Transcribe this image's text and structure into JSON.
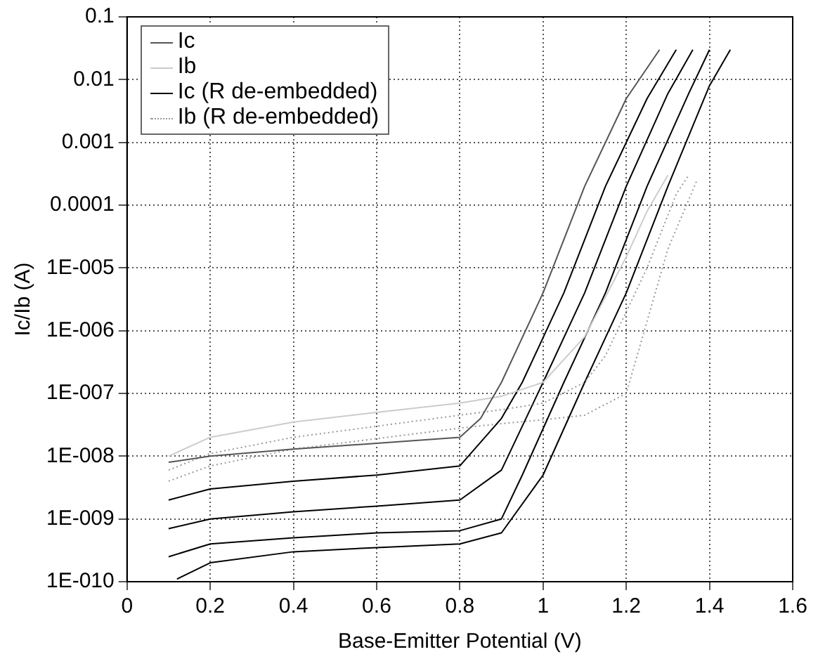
{
  "chart_data": {
    "type": "line",
    "xlabel": "Base-Emitter Potential (V)",
    "ylabel": "Ic/Ib (A)",
    "log": "y",
    "grid": true,
    "legend": "top left",
    "marker": "none",
    "xlim": [
      0,
      1.6
    ],
    "xticks": [
      0,
      0.2,
      0.4,
      0.6,
      0.8,
      1,
      1.2,
      1.4,
      1.6
    ],
    "ylim": [
      1e-10,
      0.1
    ],
    "yticks": [
      {
        "value": 1e-10,
        "label": "1E-010"
      },
      {
        "value": 1e-09,
        "label": "1E-009"
      },
      {
        "value": 1e-08,
        "label": "1E-008"
      },
      {
        "value": 1e-07,
        "label": "1E-007"
      },
      {
        "value": 1e-06,
        "label": "1E-006"
      },
      {
        "value": 1e-05,
        "label": "1E-005"
      },
      {
        "value": 0.0001,
        "label": "0.0001"
      },
      {
        "value": 0.001,
        "label": "0.001"
      },
      {
        "value": 0.01,
        "label": "0.01"
      },
      {
        "value": 0.1,
        "label": "0.1"
      }
    ],
    "series": [
      {
        "name": "Ic",
        "color": "#555555",
        "line_style": "solid",
        "x": [
          0.1,
          0.2,
          0.4,
          0.6,
          0.8,
          0.85,
          0.9,
          1.0,
          1.1,
          1.2,
          1.28
        ],
        "values": [
          8e-09,
          1e-08,
          1.3e-08,
          1.6e-08,
          2e-08,
          4e-08,
          1.5e-07,
          4e-06,
          0.0002,
          0.005,
          0.03
        ]
      },
      {
        "name": "Ib",
        "color": "#cccccc",
        "line_style": "solid",
        "x": [
          0.1,
          0.2,
          0.4,
          0.6,
          0.8,
          0.9,
          1.0,
          1.1,
          1.2,
          1.25,
          1.3
        ],
        "values": [
          1e-08,
          2e-08,
          3.5e-08,
          5e-08,
          7e-08,
          9e-08,
          1.5e-07,
          8e-07,
          1.5e-05,
          8e-05,
          0.0003
        ]
      },
      {
        "name": "Ic (R de-embedded)",
        "color": "#000000",
        "line_style": "solid",
        "x": [
          0.1,
          0.2,
          0.4,
          0.6,
          0.8,
          0.9,
          0.95,
          1.05,
          1.15,
          1.25,
          1.32
        ],
        "values": [
          2e-09,
          3e-09,
          4e-09,
          5e-09,
          7e-09,
          4e-08,
          1.5e-07,
          4e-06,
          0.0002,
          0.005,
          0.03
        ]
      },
      {
        "name": "Ib (R de-embedded)",
        "color": "#999999",
        "line_style": "dotted",
        "x": [
          0.1,
          0.2,
          0.4,
          0.6,
          0.8,
          0.9,
          1.0,
          1.1,
          1.15,
          1.25,
          1.32,
          1.35
        ],
        "values": [
          6e-09,
          1.1e-08,
          2e-08,
          3e-08,
          4.5e-08,
          5.5e-08,
          7e-08,
          1.5e-07,
          4e-07,
          1e-05,
          0.00015,
          0.0003
        ]
      },
      {
        "color": "#000000",
        "line_style": "solid",
        "x": [
          0.1,
          0.2,
          0.4,
          0.6,
          0.8,
          0.9,
          1.0,
          1.1,
          1.2,
          1.3,
          1.36
        ],
        "values": [
          7e-10,
          1e-09,
          1.3e-09,
          1.6e-09,
          2e-09,
          6e-09,
          1.5e-07,
          4e-06,
          0.0002,
          0.006,
          0.03
        ]
      },
      {
        "color": "#000000",
        "line_style": "solid",
        "x": [
          0.1,
          0.2,
          0.4,
          0.6,
          0.8,
          0.9,
          0.95,
          1.05,
          1.15,
          1.25,
          1.35,
          1.4
        ],
        "values": [
          2.5e-10,
          4e-10,
          5e-10,
          6e-10,
          6.5e-10,
          1e-09,
          5e-09,
          1.5e-07,
          4e-06,
          0.0002,
          0.006,
          0.03
        ]
      },
      {
        "color": "#000000",
        "line_style": "solid",
        "x": [
          0.12,
          0.2,
          0.4,
          0.6,
          0.8,
          0.9,
          1.0,
          1.1,
          1.2,
          1.3,
          1.4,
          1.45
        ],
        "values": [
          1.1e-10,
          2e-10,
          3e-10,
          3.5e-10,
          4e-10,
          6e-10,
          5e-09,
          1.5e-07,
          4e-06,
          0.0002,
          0.008,
          0.03
        ]
      },
      {
        "color": "#999999",
        "line_style": "dotted",
        "x": [
          0.1,
          0.2,
          0.4,
          0.6,
          0.8,
          0.9,
          1.0,
          1.1,
          1.2,
          1.3,
          1.37
        ],
        "values": [
          4e-09,
          7e-09,
          1.3e-08,
          1.9e-08,
          2.8e-08,
          3.3e-08,
          3.8e-08,
          4.5e-08,
          1e-07,
          2e-05,
          0.00025
        ]
      }
    ]
  }
}
